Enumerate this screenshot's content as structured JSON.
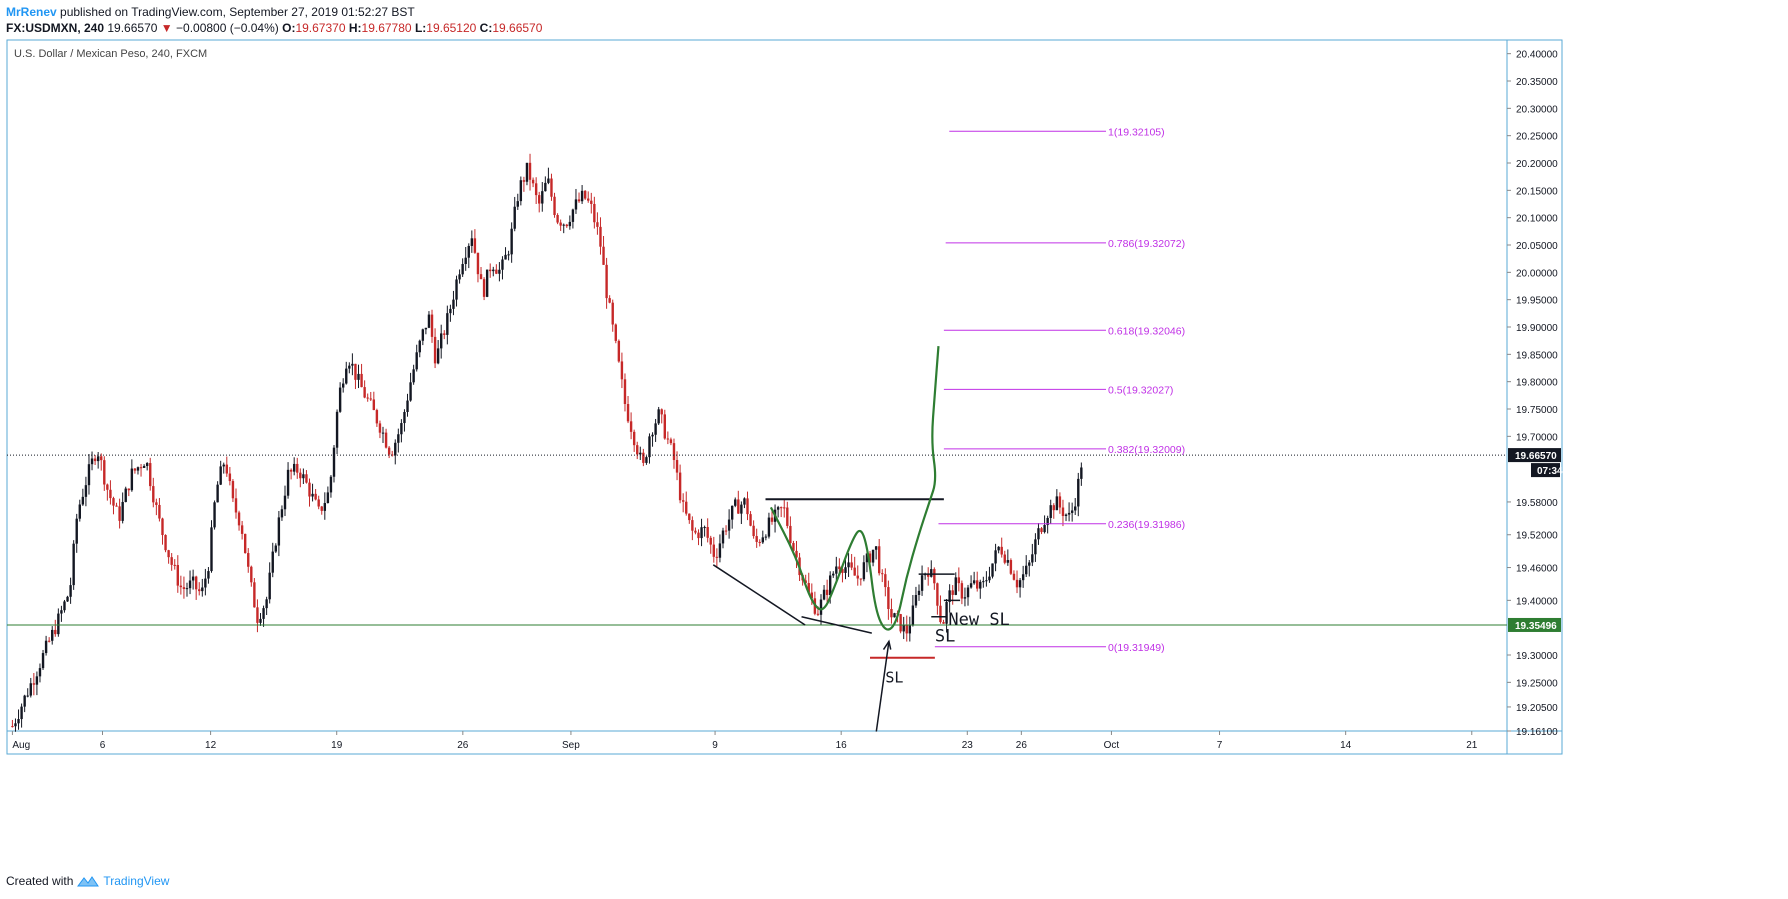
{
  "header": {
    "author": "MrRenev",
    "published": "published on TradingView.com, September 27, 2019 01:52:27 BST",
    "symbol": "FX:USDMXN, 240",
    "last": "19.66570",
    "change_arrow": "▼",
    "change": "−0.00800 (−0.04%)",
    "o_label": "O:",
    "o": "19.67370",
    "h_label": "H:",
    "h": "19.67780",
    "l_label": "L:",
    "l": "19.65120",
    "c_label": "C:",
    "c": "19.66570"
  },
  "footer": {
    "created_with": "Created with",
    "brand": "TradingView"
  },
  "colors": {
    "up": "#131722",
    "down": "#c62828",
    "fib": "#c030e6",
    "support": "#2e7d32",
    "curve": "#2e7d32",
    "accent": "#2196f3"
  },
  "chart_data": {
    "type": "candlestick",
    "title": "U.S. Dollar / Mexican Peso, 240, FXCM",
    "ylim": [
      19.161,
      20.425
    ],
    "yticks": [
      "20.40000",
      "20.35000",
      "20.30000",
      "20.25000",
      "20.20000",
      "20.15000",
      "20.10000",
      "20.05000",
      "20.00000",
      "19.95000",
      "19.90000",
      "19.85000",
      "19.80000",
      "19.75000",
      "19.70000",
      "19.58000",
      "19.52000",
      "19.46000",
      "19.40000",
      "19.30000",
      "19.25000",
      "19.20500",
      "19.16100"
    ],
    "ytick_values": [
      20.4,
      20.35,
      20.3,
      20.25,
      20.2,
      20.15,
      20.1,
      20.05,
      20.0,
      19.95,
      19.9,
      19.85,
      19.8,
      19.75,
      19.7,
      19.58,
      19.52,
      19.46,
      19.4,
      19.3,
      19.25,
      19.205,
      19.161
    ],
    "xticks": [
      {
        "label": "Aug",
        "day": 0
      },
      {
        "label": "6",
        "day": 5
      },
      {
        "label": "12",
        "day": 11
      },
      {
        "label": "19",
        "day": 18
      },
      {
        "label": "26",
        "day": 25
      },
      {
        "label": "Sep",
        "day": 31
      },
      {
        "label": "9",
        "day": 39
      },
      {
        "label": "16",
        "day": 46
      },
      {
        "label": "23",
        "day": 53
      },
      {
        "label": "26",
        "day": 56
      },
      {
        "label": "Oct",
        "day": 61
      },
      {
        "label": "7",
        "day": 67
      },
      {
        "label": "14",
        "day": 74
      },
      {
        "label": "21",
        "day": 81
      }
    ],
    "x_range_days": [
      -0.3,
      82.9
    ],
    "last_price": {
      "value": 19.6657,
      "label": "19.66570",
      "countdown": "07:34"
    },
    "support": {
      "value": 19.35496,
      "label": "19.35496"
    },
    "path_anchors": [
      [
        0,
        19.17
      ],
      [
        1.2,
        19.26
      ],
      [
        2.5,
        19.36
      ],
      [
        3.2,
        19.42
      ],
      [
        3.6,
        19.56
      ],
      [
        4.1,
        19.62
      ],
      [
        4.7,
        19.68
      ],
      [
        5.3,
        19.6
      ],
      [
        5.9,
        19.55
      ],
      [
        6.6,
        19.63
      ],
      [
        7.4,
        19.66
      ],
      [
        8.1,
        19.55
      ],
      [
        8.8,
        19.47
      ],
      [
        9.4,
        19.42
      ],
      [
        10.0,
        19.43
      ],
      [
        10.5,
        19.41
      ],
      [
        10.9,
        19.47
      ],
      [
        11.3,
        19.6
      ],
      [
        11.8,
        19.66
      ],
      [
        12.2,
        19.58
      ],
      [
        12.7,
        19.54
      ],
      [
        13.2,
        19.43
      ],
      [
        13.6,
        19.37
      ],
      [
        14.1,
        19.4
      ],
      [
        14.7,
        19.53
      ],
      [
        15.3,
        19.63
      ],
      [
        15.9,
        19.64
      ],
      [
        16.5,
        19.6
      ],
      [
        17.0,
        19.56
      ],
      [
        17.6,
        19.6
      ],
      [
        18.1,
        19.77
      ],
      [
        18.6,
        19.85
      ],
      [
        19.2,
        19.8
      ],
      [
        19.8,
        19.76
      ],
      [
        20.4,
        19.72
      ],
      [
        21.0,
        19.67
      ],
      [
        21.6,
        19.72
      ],
      [
        22.1,
        19.8
      ],
      [
        22.7,
        19.88
      ],
      [
        23.1,
        19.92
      ],
      [
        23.5,
        19.84
      ],
      [
        24.2,
        19.92
      ],
      [
        24.9,
        20.02
      ],
      [
        25.5,
        20.07
      ],
      [
        26.1,
        19.96
      ],
      [
        26.6,
        20.02
      ],
      [
        27.1,
        20.0
      ],
      [
        27.6,
        20.05
      ],
      [
        28.1,
        20.15
      ],
      [
        28.6,
        20.19
      ],
      [
        29.2,
        20.12
      ],
      [
        29.7,
        20.17
      ],
      [
        30.2,
        20.1
      ],
      [
        30.7,
        20.09
      ],
      [
        31.2,
        20.12
      ],
      [
        31.7,
        20.14
      ],
      [
        32.1,
        20.12
      ],
      [
        32.6,
        20.06
      ],
      [
        33.0,
        19.96
      ],
      [
        33.5,
        19.86
      ],
      [
        34.0,
        19.76
      ],
      [
        34.5,
        19.7
      ],
      [
        35.0,
        19.64
      ],
      [
        35.4,
        19.71
      ],
      [
        35.9,
        19.74
      ],
      [
        36.3,
        19.7
      ],
      [
        36.7,
        19.66
      ],
      [
        37.2,
        19.57
      ],
      [
        37.8,
        19.52
      ],
      [
        38.4,
        19.53
      ],
      [
        39.0,
        19.48
      ],
      [
        39.5,
        19.53
      ],
      [
        40.1,
        19.57
      ],
      [
        40.7,
        19.58
      ],
      [
        41.2,
        19.5
      ],
      [
        41.8,
        19.53
      ],
      [
        42.3,
        19.55
      ],
      [
        42.8,
        19.57
      ],
      [
        43.3,
        19.5
      ],
      [
        43.8,
        19.45
      ],
      [
        44.2,
        19.41
      ],
      [
        44.7,
        19.38
      ],
      [
        45.2,
        19.42
      ],
      [
        45.8,
        19.47
      ],
      [
        46.3,
        19.46
      ],
      [
        46.9,
        19.44
      ],
      [
        47.4,
        19.47
      ],
      [
        47.9,
        19.5
      ],
      [
        48.3,
        19.43
      ],
      [
        48.8,
        19.37
      ],
      [
        49.2,
        19.36
      ],
      [
        49.6,
        19.34
      ],
      [
        50.0,
        19.38
      ],
      [
        50.4,
        19.44
      ],
      [
        50.8,
        19.46
      ],
      [
        51.2,
        19.43
      ],
      [
        51.6,
        19.35
      ],
      [
        51.9,
        19.4
      ],
      [
        52.3,
        19.43
      ],
      [
        52.8,
        19.41
      ],
      [
        53.3,
        19.43
      ],
      [
        53.8,
        19.42
      ],
      [
        54.3,
        19.46
      ],
      [
        54.8,
        19.5
      ],
      [
        55.3,
        19.47
      ],
      [
        55.8,
        19.43
      ],
      [
        56.4,
        19.46
      ],
      [
        56.9,
        19.52
      ],
      [
        57.4,
        19.56
      ],
      [
        57.9,
        19.58
      ],
      [
        58.4,
        19.56
      ],
      [
        58.7,
        19.55
      ],
      [
        59.1,
        19.6
      ],
      [
        59.4,
        19.666
      ]
    ],
    "drawings": {
      "fib_levels": [
        {
          "label": "1(19.32105)",
          "value": 20.258,
          "x0": 52.0,
          "x1": 60.7
        },
        {
          "label": "0.786(19.32072)",
          "value": 20.054,
          "x0": 51.8,
          "x1": 60.7
        },
        {
          "label": "0.618(19.32046)",
          "value": 19.894,
          "x0": 51.7,
          "x1": 60.7
        },
        {
          "label": "0.5(19.32027)",
          "value": 19.786,
          "x0": 51.7,
          "x1": 60.7
        },
        {
          "label": "0.382(19.32009)",
          "value": 19.677,
          "x0": 51.7,
          "x1": 60.7
        },
        {
          "label": "0.236(19.31986)",
          "value": 19.54,
          "x0": 51.4,
          "x1": 60.7
        },
        {
          "label": "0(19.31949)",
          "value": 19.315,
          "x0": 51.2,
          "x1": 60.7
        }
      ],
      "sl_label": "SL",
      "sl2_label": "SL",
      "new_sl_label": "New SL"
    }
  }
}
